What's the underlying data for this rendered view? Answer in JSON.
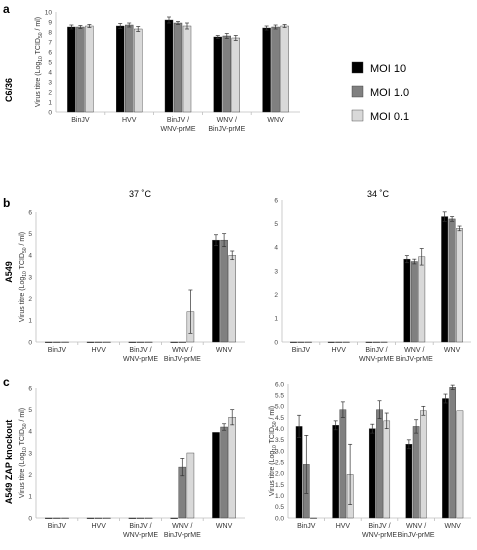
{
  "figure": {
    "panel_a": "a",
    "panel_b": "b",
    "panel_c": "c",
    "row_a_label": "C6/36",
    "row_b_label": "A549",
    "row_c_label": "A549 ZAP knockout",
    "temp_37": "37 ˚C",
    "temp_34": "34 ˚C"
  },
  "legend": {
    "items": [
      {
        "label": "MOI 10",
        "color": "#000000"
      },
      {
        "label": "MOI 1.0",
        "color": "#808080"
      },
      {
        "label": "MOI 0.1",
        "color": "#d9d9d9"
      }
    ]
  },
  "chart_data": [
    {
      "id": "a",
      "type": "bar",
      "ylabel_main": "Virus titre (Log",
      "ylabel_sub": "10",
      "ylabel_unit": " TCID",
      "ylabel_sub2": "50",
      "ylabel_end": " / ml)",
      "ylim": [
        0,
        10
      ],
      "yticks": [
        "0",
        "1",
        "2",
        "3",
        "4",
        "5",
        "6",
        "7",
        "8",
        "9",
        "10"
      ],
      "categories": [
        [
          "BinJV"
        ],
        [
          "HVV"
        ],
        [
          "BinJV /",
          "WNV-prME"
        ],
        [
          "WNV /",
          "BinJV-prME"
        ],
        [
          "WNV"
        ]
      ],
      "series": [
        {
          "name": "MOI 10",
          "values": [
            8.5,
            8.6,
            9.2,
            7.5,
            8.4
          ],
          "errors": [
            0.2,
            0.25,
            0.3,
            0.15,
            0.2
          ]
        },
        {
          "name": "MOI 1.0",
          "values": [
            8.5,
            8.7,
            8.9,
            7.6,
            8.5
          ],
          "errors": [
            0.15,
            0.2,
            0.15,
            0.25,
            0.2
          ]
        },
        {
          "name": "MOI 0.1",
          "values": [
            8.6,
            8.3,
            8.6,
            7.4,
            8.6
          ],
          "errors": [
            0.15,
            0.25,
            0.3,
            0.25,
            0.15
          ]
        }
      ]
    },
    {
      "id": "b37",
      "type": "bar",
      "ylabel_main": "Virus titre (Log",
      "ylabel_sub": "10",
      "ylabel_unit": " TCID",
      "ylabel_sub2": "50",
      "ylabel_end": " / ml)",
      "ylim": [
        0,
        6
      ],
      "yticks": [
        "0",
        "1",
        "2",
        "3",
        "4",
        "5",
        "6"
      ],
      "categories": [
        [
          "BinJV"
        ],
        [
          "HVV"
        ],
        [
          "BinJV /",
          "WNV-prME"
        ],
        [
          "WNV /",
          "BinJV-prME"
        ],
        [
          "WNV"
        ]
      ],
      "series": [
        {
          "name": "MOI 10",
          "values": [
            0,
            0,
            0,
            0,
            4.7
          ],
          "errors": [
            0,
            0,
            0,
            0,
            0.25
          ]
        },
        {
          "name": "MOI 1.0",
          "values": [
            0,
            0,
            0,
            0,
            4.7
          ],
          "errors": [
            0,
            0,
            0,
            0,
            0.3
          ]
        },
        {
          "name": "MOI 0.1",
          "values": [
            0,
            0,
            0,
            1.4,
            4.0
          ],
          "errors": [
            0,
            0,
            0,
            1.0,
            0.2
          ]
        }
      ]
    },
    {
      "id": "b34",
      "type": "bar",
      "ylabel_main": "",
      "ylim": [
        0,
        6
      ],
      "yticks": [
        "0",
        "1",
        "2",
        "3",
        "4",
        "5",
        "6"
      ],
      "categories": [
        [
          "BinJV"
        ],
        [
          "HVV"
        ],
        [
          "BinJV /",
          "WNV-prME"
        ],
        [
          "WNV /",
          "BinJV-prME"
        ],
        [
          "WNV"
        ]
      ],
      "series": [
        {
          "name": "MOI 10",
          "values": [
            0,
            0,
            0,
            3.5,
            5.3
          ],
          "errors": [
            0,
            0,
            0,
            0.15,
            0.2
          ]
        },
        {
          "name": "MOI 1.0",
          "values": [
            0,
            0,
            0,
            3.4,
            5.2
          ],
          "errors": [
            0,
            0,
            0,
            0.1,
            0.1
          ]
        },
        {
          "name": "MOI 0.1",
          "values": [
            0,
            0,
            0,
            3.6,
            4.8
          ],
          "errors": [
            0,
            0,
            0,
            0.35,
            0.1
          ]
        }
      ]
    },
    {
      "id": "c37",
      "type": "bar",
      "ylabel_main": "Virus titre (Log",
      "ylabel_sub": "10",
      "ylabel_unit": " TCID",
      "ylabel_sub2": "50",
      "ylabel_end": " / ml)",
      "ylim": [
        0,
        6
      ],
      "yticks": [
        "0",
        "1",
        "2",
        "3",
        "4",
        "5",
        "6"
      ],
      "categories": [
        [
          "BinJV"
        ],
        [
          "HVV"
        ],
        [
          "BinJV /",
          "WNV-prME"
        ],
        [
          "WNV /",
          "BinJV-prME"
        ],
        [
          "WNV"
        ]
      ],
      "series": [
        {
          "name": "MOI 10",
          "values": [
            0,
            0,
            0,
            0,
            3.95
          ],
          "errors": [
            0,
            0,
            0,
            0,
            0
          ]
        },
        {
          "name": "MOI 1.0",
          "values": [
            0,
            0,
            0,
            2.35,
            4.2
          ],
          "errors": [
            0,
            0,
            0,
            0.4,
            0.15
          ]
        },
        {
          "name": "MOI 0.1",
          "values": [
            0,
            0,
            0,
            3.0,
            4.65
          ],
          "errors": [
            0,
            0,
            0,
            0,
            0.35
          ]
        }
      ]
    },
    {
      "id": "c34",
      "type": "bar",
      "ylabel_main": "Virus titre (Log",
      "ylabel_sub": "10",
      "ylabel_unit": " TCID",
      "ylabel_sub2": "50",
      "ylabel_end": " / ml)",
      "ylim": [
        0,
        6
      ],
      "yticks": [
        "0.0",
        "0.5",
        "1.0",
        "1.5",
        "2.0",
        "2.5",
        "3.0",
        "3.5",
        "4.0",
        "4.5",
        "5.0",
        "5.5",
        "6.0"
      ],
      "ytick_step": 0.5,
      "categories": [
        [
          "BinJV"
        ],
        [
          "HVV"
        ],
        [
          "BinJV /",
          "WNV-prME"
        ],
        [
          "WNV /",
          "BinJV-prME"
        ],
        [
          "WNV"
        ]
      ],
      "series": [
        {
          "name": "MOI 10",
          "values": [
            4.1,
            4.15,
            4.0,
            3.3,
            5.35
          ],
          "errors": [
            0.5,
            0.2,
            0.2,
            0.2,
            0.2
          ]
        },
        {
          "name": "MOI 1.0",
          "values": [
            2.4,
            4.85,
            4.85,
            4.1,
            5.85
          ],
          "errors": [
            1.3,
            0.35,
            0.4,
            0.3,
            0.1
          ]
        },
        {
          "name": "MOI 0.1",
          "values": [
            0,
            1.95,
            4.35,
            4.8,
            4.8
          ],
          "errors": [
            0,
            1.35,
            0.35,
            0.2,
            0
          ]
        }
      ]
    }
  ]
}
